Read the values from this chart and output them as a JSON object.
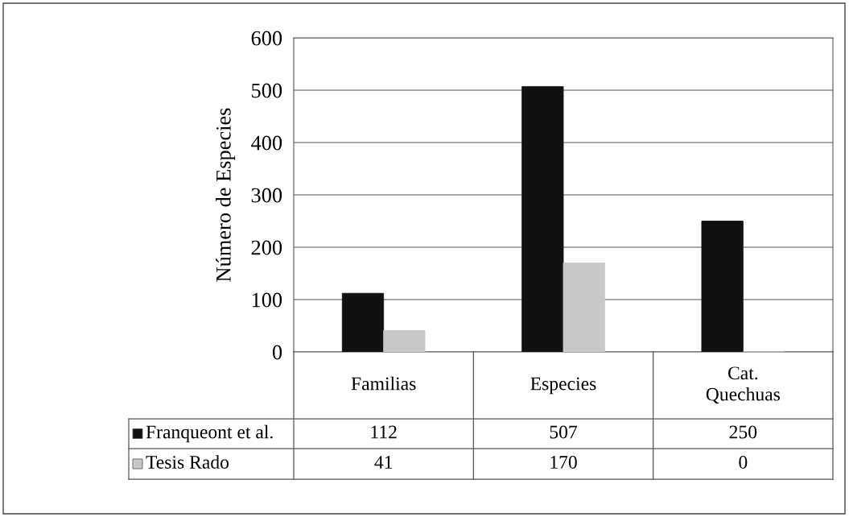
{
  "chart_data": {
    "type": "bar",
    "ylabel": "Número de Especies",
    "categories": [
      "Familias",
      "Especies",
      "Cat.\nQuechuas"
    ],
    "series": [
      {
        "name": "Franqueont et al.",
        "color": "#111111",
        "values": [
          112,
          507,
          250
        ]
      },
      {
        "name": "Tesis Rado",
        "color": "#c8c8c8",
        "values": [
          41,
          170,
          0
        ]
      }
    ],
    "ylim": [
      0,
      600
    ],
    "yticks": [
      0,
      100,
      200,
      300,
      400,
      500,
      600
    ],
    "grid": "y",
    "data_labels": true,
    "legend": "bottom"
  }
}
